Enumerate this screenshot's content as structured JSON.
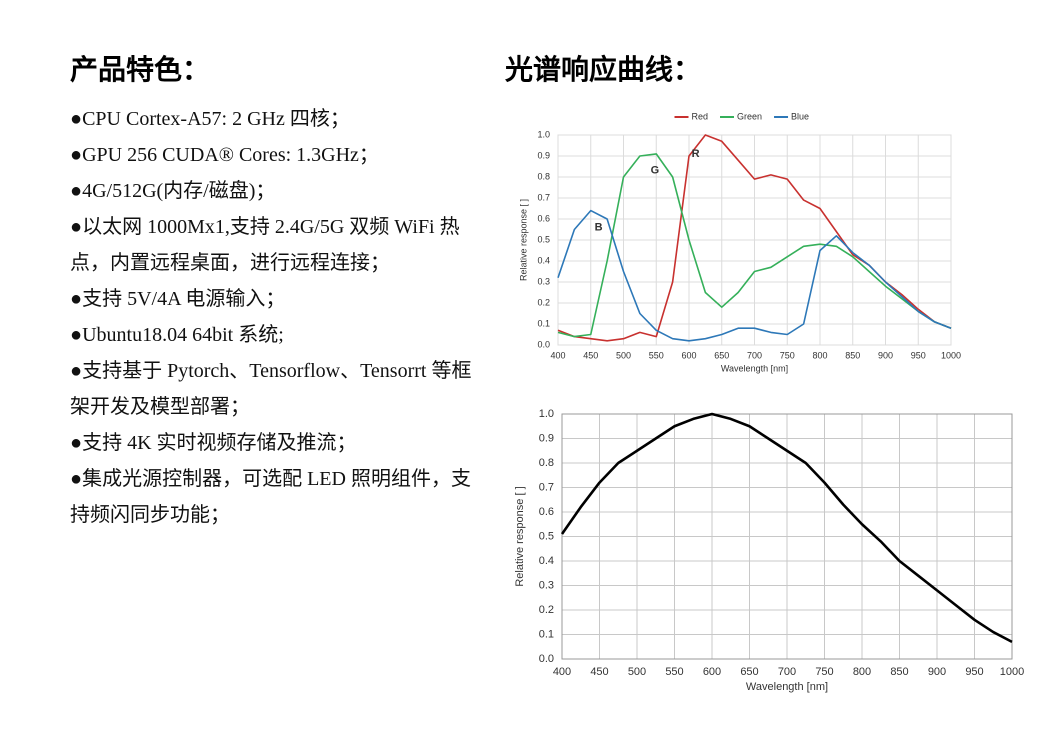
{
  "left": {
    "title": "产品特色：",
    "items": [
      "●CPU Cortex-A57: 2 GHz 四核；",
      "●GPU 256 CUDA® Cores: 1.3GHz；",
      "●4G/512G(内存/磁盘)；",
      "●以太网 1000Mx1,支持 2.4G/5G 双频 WiFi 热点，内置远程桌面，进行远程连接；",
      "●支持 5V/4A 电源输入；",
      "●Ubuntu18.04 64bit 系统;",
      "●支持基于 Pytorch、Tensorflow、Tensorrt 等框架开发及模型部署；",
      "●支持 4K 实时视频存储及推流；",
      "●集成光源控制器，可选配 LED 照明组件，支持频闪同步功能；"
    ]
  },
  "right_title": "光谱响应曲线：",
  "chart_data": [
    {
      "type": "line",
      "x_label": "Wavelength [nm]",
      "y_label": "Relative response [ ]",
      "x": [
        400,
        425,
        450,
        475,
        500,
        525,
        550,
        575,
        600,
        625,
        650,
        675,
        700,
        725,
        750,
        775,
        800,
        825,
        850,
        875,
        900,
        925,
        950,
        975,
        1000
      ],
      "series": [
        {
          "name": "Red",
          "color": "#c8312f",
          "values": [
            0.07,
            0.04,
            0.03,
            0.02,
            0.03,
            0.06,
            0.04,
            0.3,
            0.9,
            1.0,
            0.97,
            0.88,
            0.79,
            0.81,
            0.79,
            0.69,
            0.65,
            0.54,
            0.43,
            0.38,
            0.3,
            0.24,
            0.17,
            0.11,
            0.08
          ]
        },
        {
          "name": "Green",
          "color": "#35b05a",
          "values": [
            0.06,
            0.04,
            0.05,
            0.4,
            0.8,
            0.9,
            0.91,
            0.8,
            0.5,
            0.25,
            0.18,
            0.25,
            0.35,
            0.37,
            0.42,
            0.47,
            0.48,
            0.47,
            0.42,
            0.35,
            0.28,
            0.22,
            0.16,
            0.11,
            0.08
          ]
        },
        {
          "name": "Blue",
          "color": "#2d78b8",
          "values": [
            0.32,
            0.55,
            0.64,
            0.6,
            0.35,
            0.15,
            0.07,
            0.03,
            0.02,
            0.03,
            0.05,
            0.08,
            0.08,
            0.06,
            0.05,
            0.1,
            0.45,
            0.52,
            0.44,
            0.38,
            0.3,
            0.23,
            0.16,
            0.11,
            0.08
          ]
        }
      ],
      "annotations": [
        "R",
        "G",
        "B"
      ],
      "xlim": [
        400,
        1000
      ],
      "xticks": [
        400,
        450,
        500,
        550,
        600,
        650,
        700,
        750,
        800,
        850,
        900,
        950,
        1000
      ],
      "ylim": [
        0,
        1
      ],
      "yticks": [
        {
          "value": 0,
          "label": "0.0"
        },
        0.1,
        0.2,
        0.3,
        0.4,
        0.5,
        0.6,
        0.7,
        0.8,
        0.9,
        {
          "value": 1,
          "label": "1.0"
        }
      ],
      "grid": true,
      "legend": "top"
    },
    {
      "type": "line",
      "x_label": "Wavelength [nm]",
      "y_label": "Relative response [ ]",
      "color": "#000000",
      "x": [
        400,
        425,
        450,
        475,
        500,
        525,
        550,
        575,
        600,
        625,
        650,
        675,
        700,
        725,
        750,
        775,
        800,
        825,
        850,
        875,
        900,
        925,
        950,
        975,
        1000
      ],
      "values": [
        0.51,
        0.62,
        0.72,
        0.8,
        0.85,
        0.9,
        0.95,
        0.98,
        1.0,
        0.98,
        0.95,
        0.9,
        0.85,
        0.8,
        0.72,
        0.63,
        0.55,
        0.48,
        0.4,
        0.34,
        0.28,
        0.22,
        0.16,
        0.11,
        0.07
      ],
      "xlim": [
        400,
        1000
      ],
      "xticks": [
        400,
        450,
        500,
        550,
        600,
        650,
        700,
        750,
        800,
        850,
        900,
        950,
        1000
      ],
      "ylim": [
        0,
        1
      ],
      "yticks": [
        {
          "value": 0,
          "label": "0.0"
        },
        0.1,
        0.2,
        0.3,
        0.4,
        0.5,
        0.6,
        0.7,
        0.8,
        0.9,
        {
          "value": 1,
          "label": "1.0"
        }
      ],
      "grid": true
    }
  ]
}
